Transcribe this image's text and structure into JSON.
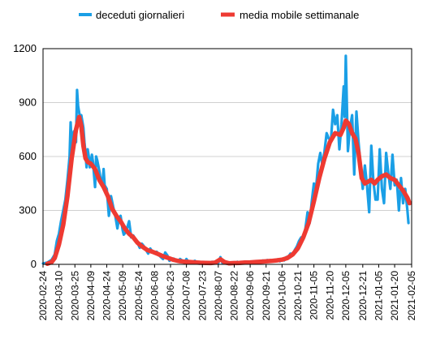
{
  "chart_data": {
    "type": "line",
    "title": "",
    "xlabel": "",
    "ylabel": "",
    "ylim": [
      0,
      1200
    ],
    "yticks": [
      "0",
      "300",
      "600",
      "900",
      "1200"
    ],
    "xlim": [
      "2020-02-24",
      "2021-02-05"
    ],
    "x_tick_labels": [
      "2020-02-24",
      "2020-03-10",
      "2020-03-25",
      "2020-04-09",
      "2020-04-24",
      "2020-05-09",
      "2020-05-24",
      "2020-06-08",
      "2020-06-23",
      "2020-07-08",
      "2020-07-23",
      "2020-08-07",
      "2020-08-22",
      "2020-09-06",
      "2020-09-21",
      "2020-10-06",
      "2020-10-21",
      "2020-11-05",
      "2020-11-20",
      "2020-12-05",
      "2020-12-21",
      "2021-01-05",
      "2021-01-20",
      "2021-02-05"
    ],
    "grid": "horizontal",
    "legend_position": "top",
    "series": [
      {
        "name": "deceduti giornalieri",
        "color": "#1a9fe6",
        "points": [
          [
            "2020-02-24",
            5
          ],
          [
            "2020-02-28",
            10
          ],
          [
            "2020-03-03",
            25
          ],
          [
            "2020-03-06",
            55
          ],
          [
            "2020-03-08",
            130
          ],
          [
            "2020-03-10",
            170
          ],
          [
            "2020-03-12",
            240
          ],
          [
            "2020-03-14",
            300
          ],
          [
            "2020-03-16",
            360
          ],
          [
            "2020-03-18",
            470
          ],
          [
            "2020-03-20",
            600
          ],
          [
            "2020-03-21",
            790
          ],
          [
            "2020-03-22",
            650
          ],
          [
            "2020-03-24",
            740
          ],
          [
            "2020-03-26",
            680
          ],
          [
            "2020-03-27",
            970
          ],
          [
            "2020-03-28",
            880
          ],
          [
            "2020-03-30",
            810
          ],
          [
            "2020-03-31",
            830
          ],
          [
            "2020-04-02",
            760
          ],
          [
            "2020-04-03",
            680
          ],
          [
            "2020-04-04",
            620
          ],
          [
            "2020-04-05",
            540
          ],
          [
            "2020-04-06",
            640
          ],
          [
            "2020-04-07",
            600
          ],
          [
            "2020-04-08",
            540
          ],
          [
            "2020-04-10",
            610
          ],
          [
            "2020-04-11",
            570
          ],
          [
            "2020-04-13",
            430
          ],
          [
            "2020-04-14",
            600
          ],
          [
            "2020-04-15",
            580
          ],
          [
            "2020-04-17",
            520
          ],
          [
            "2020-04-18",
            480
          ],
          [
            "2020-04-20",
            450
          ],
          [
            "2020-04-21",
            530
          ],
          [
            "2020-04-22",
            440
          ],
          [
            "2020-04-24",
            420
          ],
          [
            "2020-04-26",
            270
          ],
          [
            "2020-04-28",
            380
          ],
          [
            "2020-04-30",
            320
          ],
          [
            "2020-05-02",
            270
          ],
          [
            "2020-05-04",
            200
          ],
          [
            "2020-05-05",
            240
          ],
          [
            "2020-05-07",
            270
          ],
          [
            "2020-05-09",
            190
          ],
          [
            "2020-05-10",
            165
          ],
          [
            "2020-05-12",
            180
          ],
          [
            "2020-05-13",
            200
          ],
          [
            "2020-05-15",
            240
          ],
          [
            "2020-05-17",
            150
          ],
          [
            "2020-05-19",
            160
          ],
          [
            "2020-05-21",
            140
          ],
          [
            "2020-05-23",
            120
          ],
          [
            "2020-05-25",
            92
          ],
          [
            "2020-05-27",
            115
          ],
          [
            "2020-05-29",
            100
          ],
          [
            "2020-05-31",
            80
          ],
          [
            "2020-06-02",
            60
          ],
          [
            "2020-06-04",
            88
          ],
          [
            "2020-06-06",
            70
          ],
          [
            "2020-06-08",
            65
          ],
          [
            "2020-06-10",
            70
          ],
          [
            "2020-06-12",
            53
          ],
          [
            "2020-06-14",
            40
          ],
          [
            "2020-06-16",
            30
          ],
          [
            "2020-06-18",
            66
          ],
          [
            "2020-06-20",
            50
          ],
          [
            "2020-06-22",
            20
          ],
          [
            "2020-06-24",
            30
          ],
          [
            "2020-06-26",
            32
          ],
          [
            "2020-06-28",
            25
          ],
          [
            "2020-06-30",
            15
          ],
          [
            "2020-07-02",
            30
          ],
          [
            "2020-07-04",
            21
          ],
          [
            "2020-07-06",
            8
          ],
          [
            "2020-07-08",
            30
          ],
          [
            "2020-07-10",
            12
          ],
          [
            "2020-07-12",
            7
          ],
          [
            "2020-07-14",
            15
          ],
          [
            "2020-07-16",
            20
          ],
          [
            "2020-07-18",
            11
          ],
          [
            "2020-07-20",
            4
          ],
          [
            "2020-07-22",
            9
          ],
          [
            "2020-07-24",
            10
          ],
          [
            "2020-07-26",
            5
          ],
          [
            "2020-07-28",
            11
          ],
          [
            "2020-07-30",
            6
          ],
          [
            "2020-08-01",
            14
          ],
          [
            "2020-08-03",
            5
          ],
          [
            "2020-08-05",
            10
          ],
          [
            "2020-08-07",
            8
          ],
          [
            "2020-08-09",
            40
          ],
          [
            "2020-08-11",
            6
          ],
          [
            "2020-08-13",
            5
          ],
          [
            "2020-08-15",
            4
          ],
          [
            "2020-08-17",
            10
          ],
          [
            "2020-08-19",
            6
          ],
          [
            "2020-08-21",
            9
          ],
          [
            "2020-08-23",
            7
          ],
          [
            "2020-08-25",
            14
          ],
          [
            "2020-08-27",
            5
          ],
          [
            "2020-08-29",
            10
          ],
          [
            "2020-08-31",
            6
          ],
          [
            "2020-09-02",
            14
          ],
          [
            "2020-09-04",
            10
          ],
          [
            "2020-09-06",
            8
          ],
          [
            "2020-09-08",
            14
          ],
          [
            "2020-09-10",
            10
          ],
          [
            "2020-09-12",
            18
          ],
          [
            "2020-09-14",
            11
          ],
          [
            "2020-09-16",
            17
          ],
          [
            "2020-09-18",
            21
          ],
          [
            "2020-09-20",
            14
          ],
          [
            "2020-09-22",
            24
          ],
          [
            "2020-09-24",
            20
          ],
          [
            "2020-09-26",
            15
          ],
          [
            "2020-09-28",
            22
          ],
          [
            "2020-09-30",
            25
          ],
          [
            "2020-10-02",
            27
          ],
          [
            "2020-10-04",
            17
          ],
          [
            "2020-10-06",
            30
          ],
          [
            "2020-10-08",
            22
          ],
          [
            "2020-10-10",
            40
          ],
          [
            "2020-10-12",
            43
          ],
          [
            "2020-10-14",
            60
          ],
          [
            "2020-10-16",
            55
          ],
          [
            "2020-10-18",
            80
          ],
          [
            "2020-10-20",
            100
          ],
          [
            "2020-10-22",
            130
          ],
          [
            "2020-10-24",
            150
          ],
          [
            "2020-10-26",
            140
          ],
          [
            "2020-10-28",
            200
          ],
          [
            "2020-10-30",
            290
          ],
          [
            "2020-11-01",
            230
          ],
          [
            "2020-11-03",
            350
          ],
          [
            "2020-11-05",
            450
          ],
          [
            "2020-11-07",
            420
          ],
          [
            "2020-11-09",
            560
          ],
          [
            "2020-11-11",
            620
          ],
          [
            "2020-11-13",
            550
          ],
          [
            "2020-11-15",
            630
          ],
          [
            "2020-11-17",
            730
          ],
          [
            "2020-11-19",
            700
          ],
          [
            "2020-11-21",
            690
          ],
          [
            "2020-11-23",
            860
          ],
          [
            "2020-11-25",
            780
          ],
          [
            "2020-11-27",
            830
          ],
          [
            "2020-11-29",
            640
          ],
          [
            "2020-12-01",
            780
          ],
          [
            "2020-12-03",
            990
          ],
          [
            "2020-12-04",
            820
          ],
          [
            "2020-12-05",
            1160
          ],
          [
            "2020-12-07",
            630
          ],
          [
            "2020-12-09",
            760
          ],
          [
            "2020-12-11",
            830
          ],
          [
            "2020-12-13",
            500
          ],
          [
            "2020-12-15",
            850
          ],
          [
            "2020-12-17",
            680
          ],
          [
            "2020-12-19",
            540
          ],
          [
            "2020-12-21",
            420
          ],
          [
            "2020-12-23",
            550
          ],
          [
            "2020-12-25",
            440
          ],
          [
            "2020-12-27",
            290
          ],
          [
            "2020-12-29",
            660
          ],
          [
            "2020-12-31",
            460
          ],
          [
            "2021-01-02",
            360
          ],
          [
            "2021-01-04",
            360
          ],
          [
            "2021-01-06",
            640
          ],
          [
            "2021-01-08",
            420
          ],
          [
            "2021-01-10",
            340
          ],
          [
            "2021-01-12",
            620
          ],
          [
            "2021-01-14",
            510
          ],
          [
            "2021-01-16",
            420
          ],
          [
            "2021-01-18",
            610
          ],
          [
            "2021-01-20",
            440
          ],
          [
            "2021-01-22",
            470
          ],
          [
            "2021-01-24",
            300
          ],
          [
            "2021-01-26",
            480
          ],
          [
            "2021-01-28",
            340
          ],
          [
            "2021-01-30",
            420
          ],
          [
            "2021-02-01",
            300
          ],
          [
            "2021-02-02",
            230
          ]
        ]
      },
      {
        "name": "media mobile settimanale",
        "color": "#ee3a32",
        "points": [
          [
            "2020-02-28",
            3
          ],
          [
            "2020-03-03",
            12
          ],
          [
            "2020-03-06",
            35
          ],
          [
            "2020-03-10",
            110
          ],
          [
            "2020-03-14",
            220
          ],
          [
            "2020-03-18",
            380
          ],
          [
            "2020-03-22",
            590
          ],
          [
            "2020-03-26",
            750
          ],
          [
            "2020-03-29",
            820
          ],
          [
            "2020-03-31",
            770
          ],
          [
            "2020-04-02",
            660
          ],
          [
            "2020-04-04",
            590
          ],
          [
            "2020-04-06",
            570
          ],
          [
            "2020-04-09",
            560
          ],
          [
            "2020-04-13",
            530
          ],
          [
            "2020-04-17",
            470
          ],
          [
            "2020-04-21",
            430
          ],
          [
            "2020-04-25",
            380
          ],
          [
            "2020-04-29",
            310
          ],
          [
            "2020-05-03",
            270
          ],
          [
            "2020-05-07",
            240
          ],
          [
            "2020-05-11",
            200
          ],
          [
            "2020-05-15",
            170
          ],
          [
            "2020-05-19",
            150
          ],
          [
            "2020-05-23",
            120
          ],
          [
            "2020-05-27",
            100
          ],
          [
            "2020-06-01",
            80
          ],
          [
            "2020-06-06",
            70
          ],
          [
            "2020-06-11",
            58
          ],
          [
            "2020-06-16",
            45
          ],
          [
            "2020-06-21",
            35
          ],
          [
            "2020-06-26",
            25
          ],
          [
            "2020-07-01",
            18
          ],
          [
            "2020-07-06",
            15
          ],
          [
            "2020-07-11",
            13
          ],
          [
            "2020-07-16",
            11
          ],
          [
            "2020-07-21",
            9
          ],
          [
            "2020-07-26",
            8
          ],
          [
            "2020-07-31",
            7
          ],
          [
            "2020-08-04",
            10
          ],
          [
            "2020-08-09",
            28
          ],
          [
            "2020-08-13",
            12
          ],
          [
            "2020-08-17",
            6
          ],
          [
            "2020-08-22",
            7
          ],
          [
            "2020-08-27",
            8
          ],
          [
            "2020-09-01",
            10
          ],
          [
            "2020-09-06",
            11
          ],
          [
            "2020-09-11",
            13
          ],
          [
            "2020-09-16",
            15
          ],
          [
            "2020-09-21",
            17
          ],
          [
            "2020-09-26",
            19
          ],
          [
            "2020-10-01",
            22
          ],
          [
            "2020-10-06",
            26
          ],
          [
            "2020-10-11",
            35
          ],
          [
            "2020-10-16",
            55
          ],
          [
            "2020-10-21",
            90
          ],
          [
            "2020-10-26",
            150
          ],
          [
            "2020-10-31",
            230
          ],
          [
            "2020-11-05",
            350
          ],
          [
            "2020-11-10",
            480
          ],
          [
            "2020-11-15",
            590
          ],
          [
            "2020-11-20",
            680
          ],
          [
            "2020-11-25",
            730
          ],
          [
            "2020-11-30",
            720
          ],
          [
            "2020-12-03",
            760
          ],
          [
            "2020-12-05",
            800
          ],
          [
            "2020-12-08",
            780
          ],
          [
            "2020-12-11",
            730
          ],
          [
            "2020-12-14",
            700
          ],
          [
            "2020-12-17",
            620
          ],
          [
            "2020-12-20",
            480
          ],
          [
            "2020-12-23",
            450
          ],
          [
            "2020-12-26",
            460
          ],
          [
            "2020-12-29",
            470
          ],
          [
            "2021-01-01",
            450
          ],
          [
            "2021-01-04",
            470
          ],
          [
            "2021-01-08",
            490
          ],
          [
            "2021-01-12",
            500
          ],
          [
            "2021-01-16",
            480
          ],
          [
            "2021-01-20",
            470
          ],
          [
            "2021-01-24",
            440
          ],
          [
            "2021-01-28",
            410
          ],
          [
            "2021-02-01",
            370
          ],
          [
            "2021-02-03",
            340
          ]
        ]
      }
    ]
  }
}
